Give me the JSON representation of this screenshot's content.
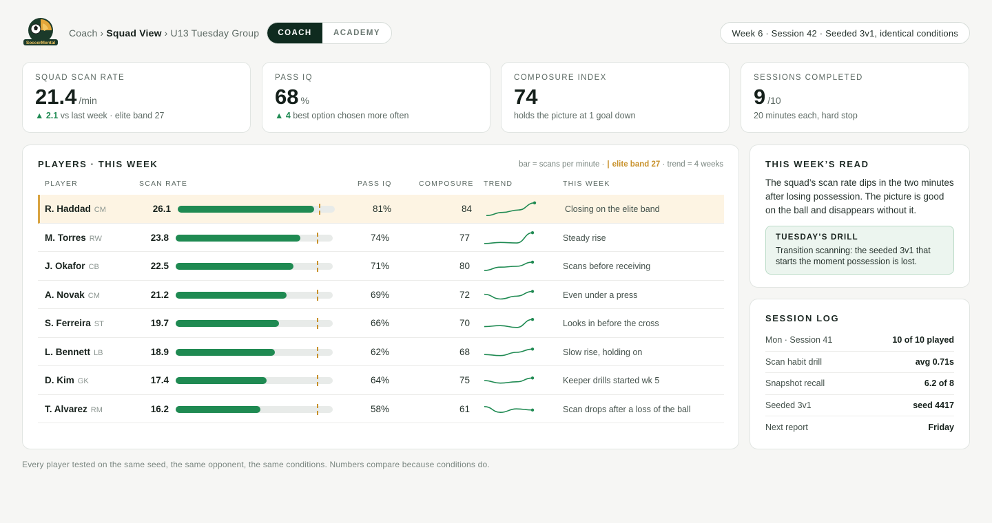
{
  "header": {
    "logo_text": "SoccerMental",
    "breadcrumb": [
      "Coach",
      "Squad View",
      "U13 Tuesday Group"
    ],
    "breadcrumb_sep": "›",
    "tabs": [
      {
        "label": "COACH",
        "active": true
      },
      {
        "label": "ACADEMY",
        "active": false
      }
    ],
    "session_info": "Week 6 · Session 42 · Seeded 3v1, identical conditions"
  },
  "kpis": [
    {
      "label": "SQUAD SCAN RATE",
      "value": "21.4",
      "unit": "/min",
      "delta": "▲ 2.1",
      "sub": " vs last week · elite band 27"
    },
    {
      "label": "PASS IQ",
      "value": "68",
      "unit": "%",
      "delta": "▲ 4",
      "sub": " best option chosen more often"
    },
    {
      "label": "COMPOSURE INDEX",
      "value": "74",
      "unit": "",
      "delta": "",
      "sub": "holds the picture at 1 goal down"
    },
    {
      "label": "SESSIONS COMPLETED",
      "value": "9",
      "unit": "/10",
      "delta": "",
      "sub": "20 minutes each, hard stop"
    }
  ],
  "players_panel": {
    "title": "PLAYERS · THIS WEEK",
    "legend_prefix": "bar = scans per minute ·",
    "legend_tick": "|",
    "legend_band": "elite band 27",
    "legend_suffix": "· trend = 4 weeks",
    "columns": [
      "PLAYER",
      "SCAN RATE",
      "PASS IQ",
      "COMPOSURE",
      "TREND",
      "THIS WEEK"
    ],
    "scan_scale_max": 30,
    "elite_band": 27,
    "accent_color": "#1f8a52",
    "band_color": "#c8912a",
    "rows": [
      {
        "name": "R. Haddad",
        "pos": "CM",
        "scan": "26.1",
        "pass_iq": "81%",
        "composure": "84",
        "note": "Closing on the elite band",
        "trend": [
          22.0,
          23.0,
          23.8,
          26.1
        ],
        "highlight": true
      },
      {
        "name": "M. Torres",
        "pos": "RW",
        "scan": "23.8",
        "pass_iq": "74%",
        "composure": "77",
        "note": "Steady rise",
        "trend": [
          21.8,
          22.0,
          21.9,
          23.8
        ],
        "highlight": false
      },
      {
        "name": "J. Okafor",
        "pos": "CB",
        "scan": "22.5",
        "pass_iq": "71%",
        "composure": "80",
        "note": "Scans before receiving",
        "trend": [
          21.5,
          21.9,
          22.0,
          22.5
        ],
        "highlight": false
      },
      {
        "name": "A. Novak",
        "pos": "CM",
        "scan": "21.2",
        "pass_iq": "69%",
        "composure": "72",
        "note": "Even under a press",
        "trend": [
          20.9,
          20.4,
          20.7,
          21.2
        ],
        "highlight": false
      },
      {
        "name": "S. Ferreira",
        "pos": "ST",
        "scan": "19.7",
        "pass_iq": "66%",
        "composure": "70",
        "note": "Looks in before the cross",
        "trend": [
          18.9,
          19.0,
          18.8,
          19.7
        ],
        "highlight": false
      },
      {
        "name": "L. Bennett",
        "pos": "LB",
        "scan": "18.9",
        "pass_iq": "62%",
        "composure": "68",
        "note": "Slow rise, holding on",
        "trend": [
          18.4,
          18.3,
          18.6,
          18.9
        ],
        "highlight": false
      },
      {
        "name": "D. Kim",
        "pos": "GK",
        "scan": "17.4",
        "pass_iq": "64%",
        "composure": "75",
        "note": "Keeper drills started wk 5",
        "trend": [
          17.2,
          17.0,
          17.1,
          17.4
        ],
        "highlight": false
      },
      {
        "name": "T. Alvarez",
        "pos": "RM",
        "scan": "16.2",
        "pass_iq": "58%",
        "composure": "61",
        "note": "Scan drops after a loss of the ball",
        "trend": [
          16.5,
          16.0,
          16.3,
          16.2
        ],
        "highlight": false
      }
    ]
  },
  "read": {
    "title": "THIS WEEK’S READ",
    "body": "The squad’s scan rate dips in the two minutes after losing possession. The picture is good on the ball and disappears without it.",
    "drill_title": "TUESDAY’S DRILL",
    "drill_body": "Transition scanning: the seeded 3v1 that starts the moment possession is lost."
  },
  "session_log": {
    "title": "SESSION LOG",
    "items": [
      {
        "label": "Mon · Session 41",
        "value": "10 of 10 played"
      },
      {
        "label": "Scan habit drill",
        "value": "avg 0.71s"
      },
      {
        "label": "Snapshot recall",
        "value": "6.2 of 8"
      },
      {
        "label": "Seeded 3v1",
        "value": "seed 4417"
      },
      {
        "label": "Next report",
        "value": "Friday"
      }
    ]
  },
  "footnote": "Every player tested on the same seed, the same opponent, the same conditions. Numbers compare because conditions do."
}
